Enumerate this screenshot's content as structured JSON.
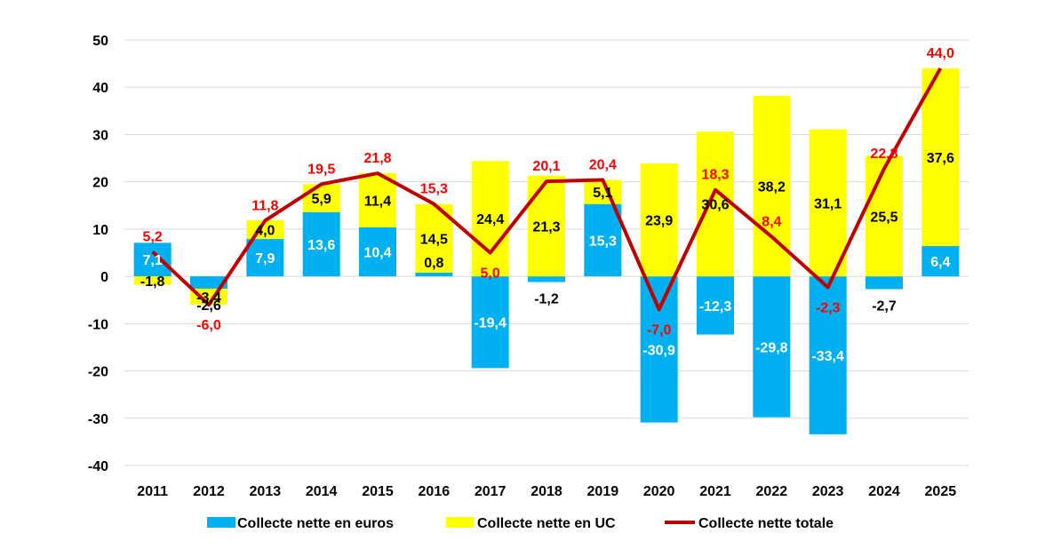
{
  "chart_data": {
    "type": "bar",
    "stacked": true,
    "categories": [
      "2011",
      "2012",
      "2013",
      "2014",
      "2015",
      "2016",
      "2017",
      "2018",
      "2019",
      "2020",
      "2021",
      "2022",
      "2023",
      "2024",
      "2025"
    ],
    "series": [
      {
        "name": "Collecte nette en euros",
        "kind": "bar",
        "color": "#00B0F0",
        "values": [
          7.1,
          -2.6,
          7.9,
          13.6,
          10.4,
          0.8,
          -19.4,
          -1.2,
          15.3,
          -30.9,
          -12.3,
          -29.8,
          -33.4,
          -2.7,
          6.4
        ],
        "labels": [
          "7,1",
          "-2,6",
          "7,9",
          "13,6",
          "10,4",
          "0,8",
          "-19,4",
          "-1,2",
          "15,3",
          "-30,9",
          "-12,3",
          "-29,8",
          "-33,4",
          "-2,7",
          "6,4"
        ]
      },
      {
        "name": "Collecte nette en UC",
        "kind": "bar",
        "color": "#FFFF00",
        "values": [
          -1.8,
          -3.4,
          4.0,
          5.9,
          11.4,
          14.5,
          24.4,
          21.3,
          5.1,
          23.9,
          30.6,
          38.2,
          31.1,
          25.5,
          37.6
        ],
        "labels": [
          "-1,8",
          "-3,4",
          "4,0",
          "5,9",
          "11,4",
          "14,5",
          "24,4",
          "21,3",
          "5,1",
          "23,9",
          "30,6",
          "38,2",
          "31,1",
          "25,5",
          "37,6"
        ]
      },
      {
        "name": "Collecte nette totale",
        "kind": "line",
        "color": "#C00000",
        "values": [
          5.2,
          -6.0,
          11.8,
          19.5,
          21.8,
          15.3,
          5.0,
          20.1,
          20.4,
          -7.0,
          18.3,
          8.4,
          -2.3,
          22.8,
          44.0
        ],
        "labels": [
          "5,2",
          "-6,0",
          "11,8",
          "19,5",
          "21,8",
          "15,3",
          "5,0",
          "20,1",
          "20,4",
          "-7,0",
          "18,3",
          "8,4",
          "-2,3",
          "22,8",
          "44,0"
        ]
      }
    ],
    "yticks": [
      "50",
      "40",
      "30",
      "20",
      "10",
      "0",
      "-10",
      "-20",
      "-30",
      "-40"
    ],
    "ylim": [
      -40,
      50
    ],
    "grid": true,
    "legend": "bottom",
    "label_colors": {
      "euros": "#FFFFFF",
      "euros_outside": "#000000",
      "uc": "#000000",
      "total": "#FF0000"
    }
  }
}
